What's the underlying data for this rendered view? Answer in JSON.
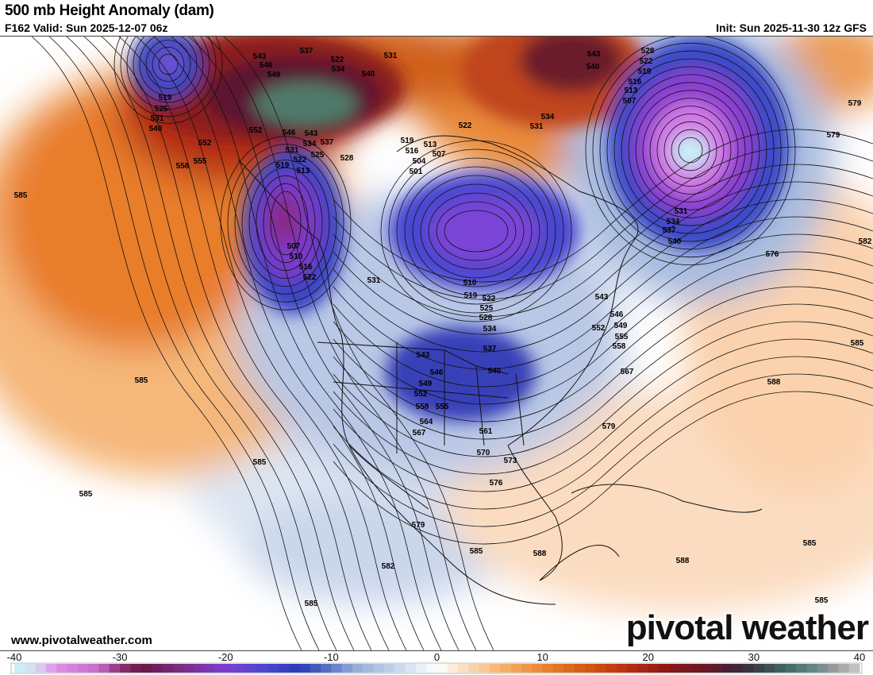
{
  "header": {
    "title": "500 mb Height Anomaly (dam)",
    "valid": "F162 Valid: Sun 2025-12-07 06z",
    "init": "Init: Sun 2025-11-30 12z GFS"
  },
  "footer": {
    "url": "www.pivotalweather.com",
    "logo": "pivotal weather"
  },
  "map": {
    "variable": "500 mb geopotential height anomaly",
    "units": "dam",
    "contour_labels": [
      "519",
      "525",
      "531",
      "540",
      "543",
      "546",
      "549",
      "537",
      "522",
      "534",
      "531",
      "540",
      "552",
      "546",
      "543",
      "537",
      "534",
      "531",
      "525",
      "522",
      "519",
      "513",
      "528",
      "552",
      "558",
      "555",
      "585",
      "519",
      "516",
      "513",
      "507",
      "504",
      "501",
      "522",
      "543",
      "540",
      "534",
      "531",
      "528",
      "522",
      "519",
      "516",
      "513",
      "507",
      "579",
      "579",
      "531",
      "534",
      "537",
      "540",
      "582",
      "576",
      "507",
      "510",
      "516",
      "522",
      "531",
      "510",
      "519",
      "522",
      "525",
      "528",
      "534",
      "543",
      "546",
      "549",
      "552",
      "555",
      "558",
      "537",
      "543",
      "546",
      "549",
      "540",
      "552",
      "558",
      "555",
      "564",
      "567",
      "561",
      "570",
      "573",
      "576",
      "567",
      "579",
      "588",
      "585",
      "585",
      "585",
      "585",
      "579",
      "585",
      "588",
      "582",
      "588",
      "585",
      "585",
      "585"
    ]
  },
  "colorbar": {
    "ticks": [
      "-40",
      "-30",
      "-20",
      "-10",
      "0",
      "10",
      "20",
      "30",
      "40"
    ],
    "range": [
      -40,
      40
    ],
    "stops": [
      [
        -40,
        "#c6f5f8"
      ],
      [
        -38,
        "#d5dcee"
      ],
      [
        -36,
        "#e08ee8"
      ],
      [
        -32,
        "#c56cc8"
      ],
      [
        -30,
        "#8e2f78"
      ],
      [
        -28,
        "#6a1545"
      ],
      [
        -24,
        "#7b2d8a"
      ],
      [
        -20,
        "#7b3fd0"
      ],
      [
        -16,
        "#4a46d0"
      ],
      [
        -13,
        "#2a3ab8"
      ],
      [
        -11,
        "#4a62c0"
      ],
      [
        -8,
        "#8ea8d8"
      ],
      [
        -4,
        "#c4d4ea"
      ],
      [
        -1,
        "#f1f4fa"
      ],
      [
        0,
        "#ffffff"
      ],
      [
        2,
        "#fde6cf"
      ],
      [
        6,
        "#f6b46e"
      ],
      [
        10,
        "#ea8530"
      ],
      [
        14,
        "#d45a10"
      ],
      [
        18,
        "#b82e10"
      ],
      [
        22,
        "#8c1515"
      ],
      [
        26,
        "#641a2a"
      ],
      [
        28,
        "#3e2035"
      ],
      [
        30,
        "#3a3a40"
      ],
      [
        33,
        "#3f6a60"
      ],
      [
        36,
        "#6d8a88"
      ],
      [
        38,
        "#a0a0a0"
      ],
      [
        40,
        "#cccccc"
      ]
    ]
  }
}
